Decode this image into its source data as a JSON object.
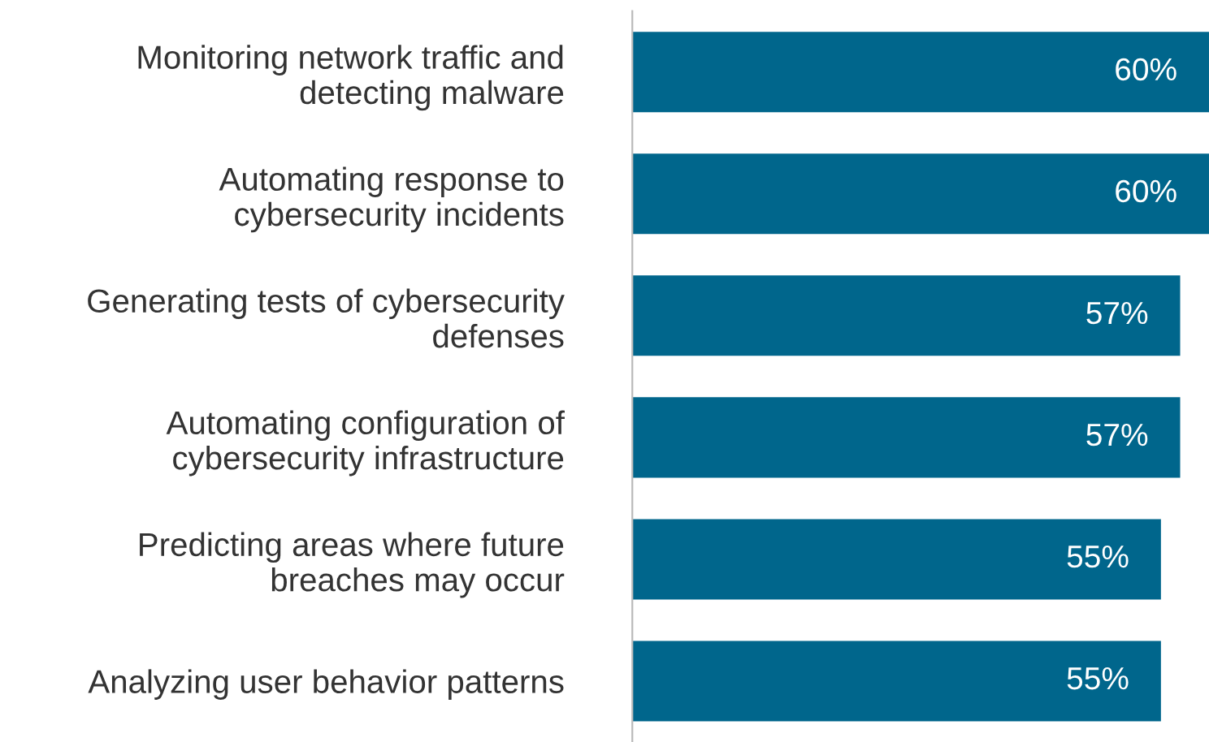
{
  "chart_data": {
    "type": "bar",
    "orientation": "horizontal",
    "categories": [
      "Monitoring network traffic and\ndetecting malware",
      "Automating response to\ncybersecurity incidents",
      "Generating tests of cybersecurity\ndefenses",
      "Automating configuration of\ncybersecurity infrastructure",
      "Predicting areas where future\nbreaches may occur",
      "Analyzing user behavior patterns"
    ],
    "values": [
      60,
      60,
      57,
      57,
      55,
      55
    ],
    "value_labels": [
      "60%",
      "60%",
      "57%",
      "57%",
      "55%",
      "55%"
    ],
    "color": "#00668c",
    "xlim": [
      0,
      60
    ],
    "tick_labels": "y",
    "grid": false,
    "legend": false
  }
}
